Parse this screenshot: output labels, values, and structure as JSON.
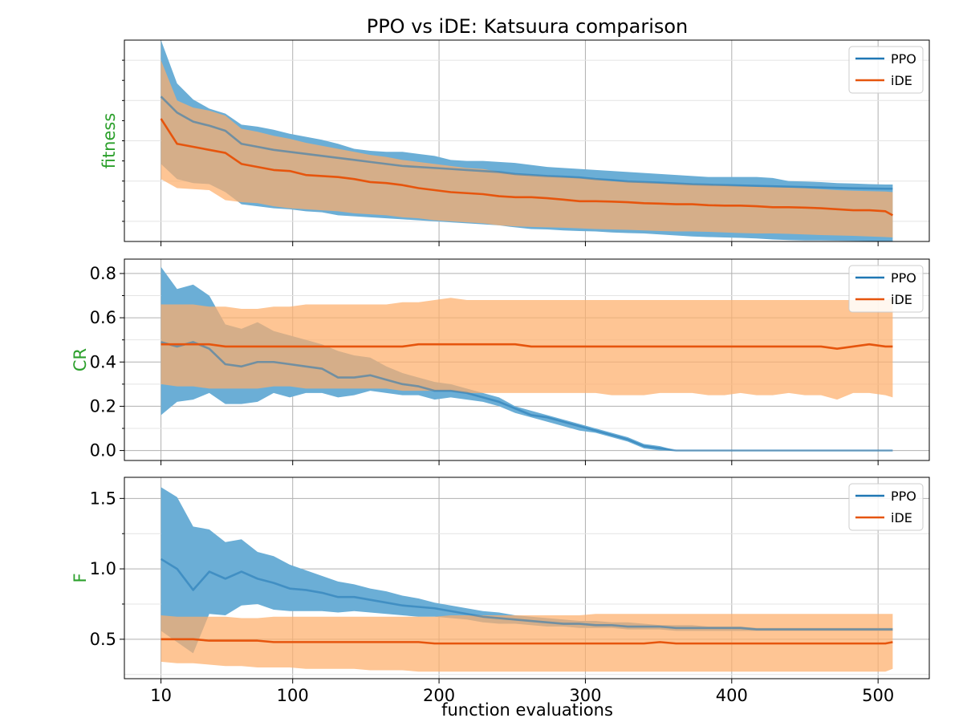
{
  "figure": {
    "title": "PPO vs iDE: Katsuura comparison",
    "xlabel": "function evaluations",
    "ylabel_color": "#2ca02c"
  },
  "colors": {
    "PPO": "#1f77b4",
    "PPO_band": "#6baed6",
    "iDE": "#e6550d",
    "iDE_band": "#fdae6b"
  },
  "chart_data": [
    {
      "type": "line",
      "panel": "fitness",
      "ylabel": "fitness",
      "x": [
        10,
        21,
        32,
        43,
        54,
        65,
        76,
        87,
        98,
        109,
        120,
        131,
        142,
        153,
        164,
        175,
        186,
        197,
        208,
        219,
        230,
        241,
        252,
        263,
        274,
        285,
        296,
        307,
        318,
        329,
        340,
        351,
        362,
        373,
        384,
        395,
        406,
        417,
        428,
        439,
        450,
        461,
        472,
        483,
        494,
        505,
        510
      ],
      "xlim": [
        -15,
        535
      ],
      "ylim": [
        0,
        10
      ],
      "yticks_visible": false,
      "grid": true,
      "legend": "top-right",
      "series": [
        {
          "name": "PPO",
          "mean": [
            7.2,
            6.4,
            5.95,
            5.75,
            5.5,
            4.85,
            4.7,
            4.55,
            4.45,
            4.35,
            4.25,
            4.15,
            4.05,
            3.95,
            3.85,
            3.75,
            3.7,
            3.65,
            3.6,
            3.55,
            3.5,
            3.45,
            3.35,
            3.3,
            3.25,
            3.22,
            3.18,
            3.1,
            3.05,
            2.98,
            2.95,
            2.92,
            2.88,
            2.84,
            2.82,
            2.8,
            2.78,
            2.76,
            2.74,
            2.72,
            2.7,
            2.68,
            2.66,
            2.64,
            2.63,
            2.62,
            2.62
          ],
          "upper": [
            10.0,
            7.85,
            7.05,
            6.6,
            6.35,
            5.8,
            5.7,
            5.55,
            5.35,
            5.2,
            5.05,
            4.85,
            4.6,
            4.5,
            4.45,
            4.45,
            4.35,
            4.25,
            4.05,
            4.0,
            4.0,
            3.95,
            3.9,
            3.8,
            3.7,
            3.65,
            3.6,
            3.55,
            3.5,
            3.45,
            3.4,
            3.35,
            3.3,
            3.25,
            3.2,
            3.2,
            3.2,
            3.2,
            3.15,
            3.0,
            2.98,
            2.95,
            2.9,
            2.88,
            2.85,
            2.83,
            2.83
          ],
          "lower": [
            3.85,
            3.1,
            2.9,
            2.85,
            2.45,
            1.85,
            1.75,
            1.65,
            1.6,
            1.5,
            1.45,
            1.3,
            1.25,
            1.2,
            1.15,
            1.1,
            1.05,
            1.0,
            0.95,
            0.9,
            0.85,
            0.8,
            0.7,
            0.62,
            0.6,
            0.55,
            0.52,
            0.5,
            0.45,
            0.42,
            0.4,
            0.35,
            0.3,
            0.25,
            0.22,
            0.2,
            0.18,
            0.15,
            0.1,
            0.07,
            0.05,
            0.05,
            0.04,
            0.03,
            0.02,
            0.02,
            0.02
          ]
        },
        {
          "name": "iDE",
          "mean": [
            6.1,
            4.85,
            4.7,
            4.55,
            4.4,
            3.85,
            3.7,
            3.55,
            3.5,
            3.3,
            3.25,
            3.2,
            3.1,
            2.95,
            2.9,
            2.8,
            2.65,
            2.55,
            2.45,
            2.4,
            2.35,
            2.25,
            2.2,
            2.2,
            2.15,
            2.08,
            2.0,
            2.0,
            1.98,
            1.95,
            1.9,
            1.88,
            1.85,
            1.85,
            1.8,
            1.78,
            1.78,
            1.75,
            1.7,
            1.7,
            1.68,
            1.65,
            1.6,
            1.55,
            1.55,
            1.5,
            1.3
          ],
          "upper": [
            9.0,
            7.0,
            6.65,
            6.5,
            6.25,
            5.6,
            5.45,
            5.25,
            5.1,
            4.9,
            4.75,
            4.6,
            4.45,
            4.3,
            4.2,
            4.05,
            3.95,
            3.85,
            3.75,
            3.65,
            3.6,
            3.45,
            3.35,
            3.3,
            3.25,
            3.2,
            3.15,
            3.1,
            3.0,
            2.98,
            2.95,
            2.9,
            2.88,
            2.85,
            2.82,
            2.8,
            2.75,
            2.72,
            2.7,
            2.68,
            2.65,
            2.6,
            2.55,
            2.52,
            2.5,
            2.48,
            2.45
          ],
          "lower": [
            3.1,
            2.65,
            2.6,
            2.55,
            2.05,
            1.95,
            1.9,
            1.75,
            1.65,
            1.6,
            1.55,
            1.5,
            1.4,
            1.35,
            1.3,
            1.2,
            1.15,
            1.05,
            1.0,
            0.95,
            0.9,
            0.8,
            0.75,
            0.72,
            0.7,
            0.68,
            0.65,
            0.62,
            0.6,
            0.58,
            0.55,
            0.52,
            0.5,
            0.5,
            0.48,
            0.45,
            0.42,
            0.4,
            0.4,
            0.38,
            0.35,
            0.32,
            0.3,
            0.28,
            0.25,
            0.22,
            0.2
          ]
        }
      ]
    },
    {
      "type": "line",
      "panel": "CR",
      "ylabel": "CR",
      "x": [
        10,
        21,
        32,
        43,
        54,
        65,
        76,
        87,
        98,
        109,
        120,
        131,
        142,
        153,
        164,
        175,
        186,
        197,
        208,
        219,
        230,
        241,
        252,
        263,
        274,
        285,
        296,
        307,
        318,
        329,
        340,
        351,
        362,
        373,
        384,
        395,
        406,
        417,
        428,
        439,
        450,
        461,
        472,
        483,
        494,
        505,
        510
      ],
      "xlim": [
        -15,
        535
      ],
      "ylim": [
        -0.045,
        0.865
      ],
      "yticks": [
        0.0,
        0.2,
        0.4,
        0.6,
        0.8
      ],
      "ytick_labels": [
        "0.0",
        "0.2",
        "0.4",
        "0.6",
        "0.8"
      ],
      "grid": true,
      "legend": "top-right",
      "series": [
        {
          "name": "PPO",
          "mean": [
            0.49,
            0.47,
            0.49,
            0.46,
            0.39,
            0.38,
            0.4,
            0.4,
            0.39,
            0.38,
            0.37,
            0.33,
            0.33,
            0.34,
            0.32,
            0.3,
            0.29,
            0.27,
            0.27,
            0.26,
            0.24,
            0.22,
            0.19,
            0.16,
            0.15,
            0.13,
            0.11,
            0.09,
            0.07,
            0.05,
            0.02,
            0.01,
            0.0,
            0.0,
            0.0,
            0.0,
            0.0,
            0.0,
            0.0,
            0.0,
            0.0,
            0.0,
            0.0,
            0.0,
            0.0,
            0.0,
            0.0
          ],
          "upper": [
            0.83,
            0.73,
            0.75,
            0.7,
            0.57,
            0.55,
            0.58,
            0.54,
            0.52,
            0.5,
            0.48,
            0.45,
            0.43,
            0.42,
            0.38,
            0.35,
            0.33,
            0.31,
            0.3,
            0.28,
            0.26,
            0.24,
            0.2,
            0.18,
            0.16,
            0.14,
            0.12,
            0.1,
            0.08,
            0.06,
            0.03,
            0.02,
            0.0,
            0.0,
            0.0,
            0.0,
            0.0,
            0.0,
            0.0,
            0.0,
            0.0,
            0.0,
            0.0,
            0.0,
            0.0,
            0.0,
            0.0
          ],
          "lower": [
            0.16,
            0.22,
            0.23,
            0.26,
            0.21,
            0.21,
            0.22,
            0.26,
            0.24,
            0.26,
            0.26,
            0.24,
            0.25,
            0.27,
            0.26,
            0.25,
            0.25,
            0.23,
            0.24,
            0.23,
            0.22,
            0.2,
            0.17,
            0.15,
            0.13,
            0.11,
            0.09,
            0.08,
            0.06,
            0.04,
            0.01,
            0.0,
            0.0,
            0.0,
            0.0,
            0.0,
            0.0,
            0.0,
            0.0,
            0.0,
            0.0,
            0.0,
            0.0,
            0.0,
            0.0,
            0.0,
            0.0
          ]
        },
        {
          "name": "iDE",
          "mean": [
            0.48,
            0.48,
            0.48,
            0.48,
            0.47,
            0.47,
            0.47,
            0.47,
            0.47,
            0.47,
            0.47,
            0.47,
            0.47,
            0.47,
            0.47,
            0.47,
            0.48,
            0.48,
            0.48,
            0.48,
            0.48,
            0.48,
            0.48,
            0.47,
            0.47,
            0.47,
            0.47,
            0.47,
            0.47,
            0.47,
            0.47,
            0.47,
            0.47,
            0.47,
            0.47,
            0.47,
            0.47,
            0.47,
            0.47,
            0.47,
            0.47,
            0.47,
            0.46,
            0.47,
            0.48,
            0.47,
            0.47
          ],
          "upper": [
            0.66,
            0.66,
            0.66,
            0.65,
            0.65,
            0.64,
            0.64,
            0.65,
            0.65,
            0.66,
            0.66,
            0.66,
            0.66,
            0.66,
            0.66,
            0.67,
            0.67,
            0.68,
            0.69,
            0.68,
            0.68,
            0.68,
            0.68,
            0.68,
            0.68,
            0.68,
            0.68,
            0.68,
            0.68,
            0.68,
            0.68,
            0.68,
            0.68,
            0.68,
            0.68,
            0.68,
            0.68,
            0.68,
            0.68,
            0.68,
            0.68,
            0.68,
            0.68,
            0.68,
            0.69,
            0.68,
            0.69
          ],
          "lower": [
            0.3,
            0.29,
            0.29,
            0.28,
            0.28,
            0.28,
            0.28,
            0.29,
            0.29,
            0.28,
            0.28,
            0.28,
            0.28,
            0.28,
            0.28,
            0.27,
            0.27,
            0.27,
            0.27,
            0.26,
            0.26,
            0.26,
            0.26,
            0.26,
            0.26,
            0.26,
            0.26,
            0.26,
            0.25,
            0.25,
            0.25,
            0.26,
            0.26,
            0.26,
            0.25,
            0.25,
            0.26,
            0.25,
            0.25,
            0.26,
            0.25,
            0.25,
            0.23,
            0.26,
            0.26,
            0.25,
            0.24
          ]
        }
      ]
    },
    {
      "type": "line",
      "panel": "F",
      "ylabel": "F",
      "x": [
        10,
        21,
        32,
        43,
        54,
        65,
        76,
        87,
        98,
        109,
        120,
        131,
        142,
        153,
        164,
        175,
        186,
        197,
        208,
        219,
        230,
        241,
        252,
        263,
        274,
        285,
        296,
        307,
        318,
        329,
        340,
        351,
        362,
        373,
        384,
        395,
        406,
        417,
        428,
        439,
        450,
        461,
        472,
        483,
        494,
        505,
        510
      ],
      "xlim": [
        -15,
        535
      ],
      "ylim": [
        0.22,
        1.65
      ],
      "yticks": [
        0.5,
        1.0,
        1.5
      ],
      "ytick_labels": [
        "0.5",
        "1.0",
        "1.5"
      ],
      "grid": true,
      "legend": "top-right",
      "series": [
        {
          "name": "PPO",
          "mean": [
            1.07,
            1.0,
            0.85,
            0.98,
            0.93,
            0.98,
            0.93,
            0.9,
            0.86,
            0.85,
            0.83,
            0.8,
            0.8,
            0.78,
            0.76,
            0.74,
            0.73,
            0.72,
            0.7,
            0.68,
            0.66,
            0.65,
            0.64,
            0.63,
            0.62,
            0.61,
            0.61,
            0.6,
            0.6,
            0.59,
            0.59,
            0.59,
            0.58,
            0.58,
            0.58,
            0.58,
            0.58,
            0.57,
            0.57,
            0.57,
            0.57,
            0.57,
            0.57,
            0.57,
            0.57,
            0.57,
            0.57
          ],
          "upper": [
            1.58,
            1.51,
            1.3,
            1.28,
            1.19,
            1.21,
            1.12,
            1.09,
            1.03,
            0.99,
            0.95,
            0.91,
            0.89,
            0.86,
            0.84,
            0.81,
            0.79,
            0.76,
            0.74,
            0.72,
            0.7,
            0.69,
            0.67,
            0.66,
            0.65,
            0.64,
            0.63,
            0.63,
            0.62,
            0.62,
            0.61,
            0.6,
            0.6,
            0.6,
            0.59,
            0.59,
            0.59,
            0.58,
            0.58,
            0.58,
            0.58,
            0.58,
            0.58,
            0.58,
            0.58,
            0.58,
            0.58
          ],
          "lower": [
            0.56,
            0.48,
            0.4,
            0.68,
            0.67,
            0.74,
            0.75,
            0.71,
            0.7,
            0.7,
            0.7,
            0.69,
            0.7,
            0.69,
            0.68,
            0.67,
            0.66,
            0.66,
            0.65,
            0.64,
            0.62,
            0.61,
            0.61,
            0.6,
            0.59,
            0.59,
            0.58,
            0.58,
            0.58,
            0.57,
            0.57,
            0.57,
            0.56,
            0.56,
            0.56,
            0.56,
            0.56,
            0.56,
            0.56,
            0.56,
            0.56,
            0.56,
            0.56,
            0.56,
            0.56,
            0.56,
            0.56
          ]
        },
        {
          "name": "iDE",
          "mean": [
            0.5,
            0.5,
            0.5,
            0.49,
            0.49,
            0.49,
            0.49,
            0.48,
            0.48,
            0.48,
            0.48,
            0.48,
            0.48,
            0.48,
            0.48,
            0.48,
            0.48,
            0.47,
            0.47,
            0.47,
            0.47,
            0.47,
            0.47,
            0.47,
            0.47,
            0.47,
            0.47,
            0.47,
            0.47,
            0.47,
            0.47,
            0.48,
            0.47,
            0.47,
            0.47,
            0.47,
            0.47,
            0.47,
            0.47,
            0.47,
            0.47,
            0.47,
            0.47,
            0.47,
            0.47,
            0.47,
            0.48
          ],
          "upper": [
            0.67,
            0.66,
            0.66,
            0.66,
            0.66,
            0.65,
            0.65,
            0.66,
            0.66,
            0.66,
            0.66,
            0.66,
            0.66,
            0.66,
            0.66,
            0.66,
            0.66,
            0.66,
            0.67,
            0.67,
            0.67,
            0.67,
            0.67,
            0.67,
            0.67,
            0.67,
            0.67,
            0.68,
            0.68,
            0.68,
            0.68,
            0.68,
            0.68,
            0.68,
            0.68,
            0.68,
            0.68,
            0.68,
            0.68,
            0.68,
            0.68,
            0.68,
            0.68,
            0.68,
            0.68,
            0.68,
            0.68
          ],
          "lower": [
            0.34,
            0.33,
            0.33,
            0.32,
            0.31,
            0.31,
            0.3,
            0.3,
            0.3,
            0.29,
            0.29,
            0.29,
            0.29,
            0.28,
            0.28,
            0.28,
            0.27,
            0.27,
            0.27,
            0.27,
            0.27,
            0.27,
            0.27,
            0.27,
            0.27,
            0.27,
            0.27,
            0.27,
            0.27,
            0.27,
            0.27,
            0.27,
            0.27,
            0.27,
            0.27,
            0.27,
            0.27,
            0.27,
            0.27,
            0.27,
            0.27,
            0.27,
            0.27,
            0.27,
            0.27,
            0.27,
            0.29
          ]
        }
      ]
    }
  ],
  "x_ticks": [
    10,
    100,
    200,
    300,
    400,
    500
  ],
  "x_tick_labels": [
    "10",
    "100",
    "200",
    "300",
    "400",
    "500"
  ]
}
